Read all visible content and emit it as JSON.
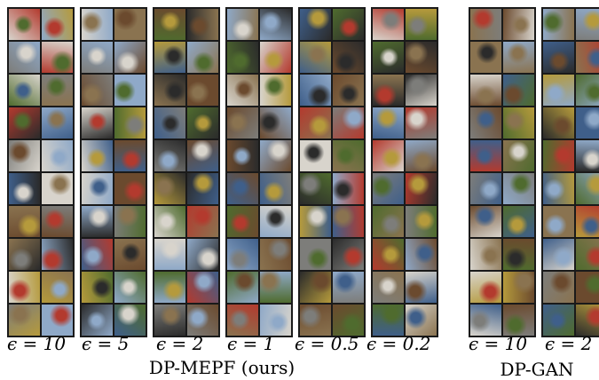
{
  "figure": {
    "group_mepf": {
      "title": "DP-MEPF (ours)",
      "panels": [
        {
          "label": "ϵ = 10"
        },
        {
          "label": "ϵ = 5"
        },
        {
          "label": "ϵ = 2"
        },
        {
          "label": "ϵ = 1"
        },
        {
          "label": "ϵ = 0.5"
        },
        {
          "label": "ϵ = 0.2"
        }
      ]
    },
    "group_gan": {
      "title": "DP-GAN",
      "panels": [
        {
          "label": "ϵ = 10"
        },
        {
          "label": "ϵ = 2"
        }
      ]
    },
    "grid": {
      "rows": 10,
      "cols": 2
    },
    "palette": {
      "sky": "#8fa9c8",
      "grass": "#4f6b2e",
      "dirt": "#8a7350",
      "dark": "#2b2b2b",
      "light": "#d8d4cc",
      "red": "#b33a2e",
      "gray": "#7d7d7a",
      "brown": "#6b4a2e",
      "yellow": "#b59a3c",
      "blue": "#3f5f8a"
    }
  }
}
